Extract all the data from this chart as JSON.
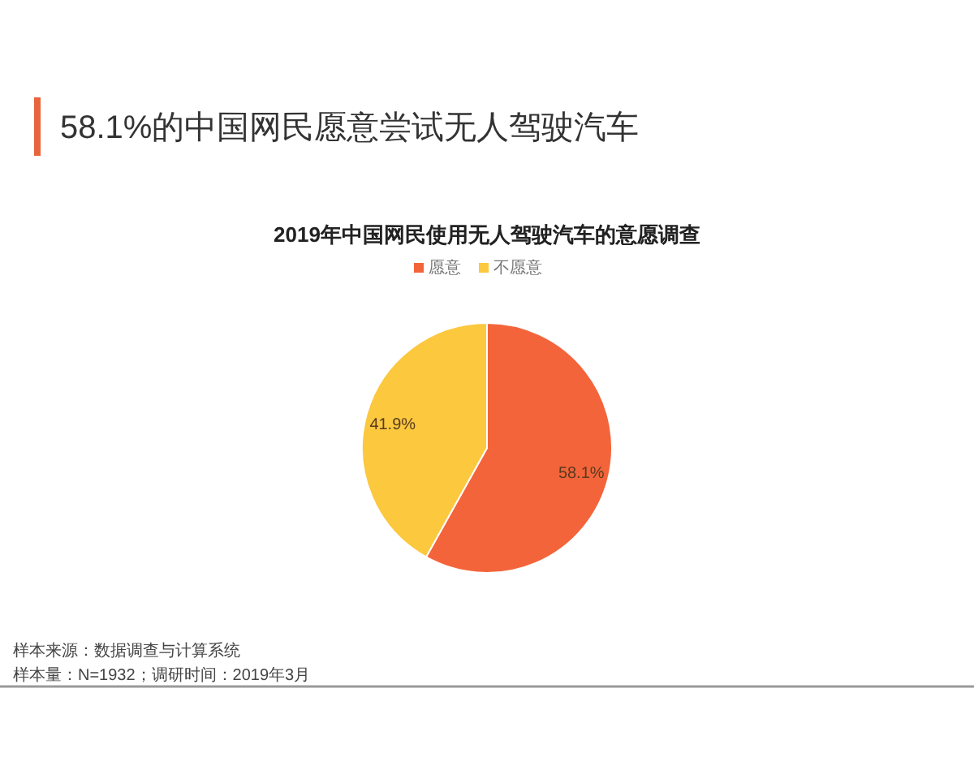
{
  "chart_data": {
    "type": "pie",
    "title": "58.1%的中国网民愿意尝试无人驾驶汽车",
    "subtitle": "2019年中国网民使用无人驾驶汽车的意愿调查",
    "categories": [
      "愿意",
      "不愿意"
    ],
    "values": [
      58.1,
      41.9
    ],
    "colors": [
      "#f4643a",
      "#fbc83e"
    ],
    "value_labels": [
      "58.1%",
      "41.9%"
    ],
    "legend": "top",
    "annotations": [
      "样本来源：数据调查与计算系统",
      "样本量：N=1932；调研时间：2019年3月"
    ]
  }
}
